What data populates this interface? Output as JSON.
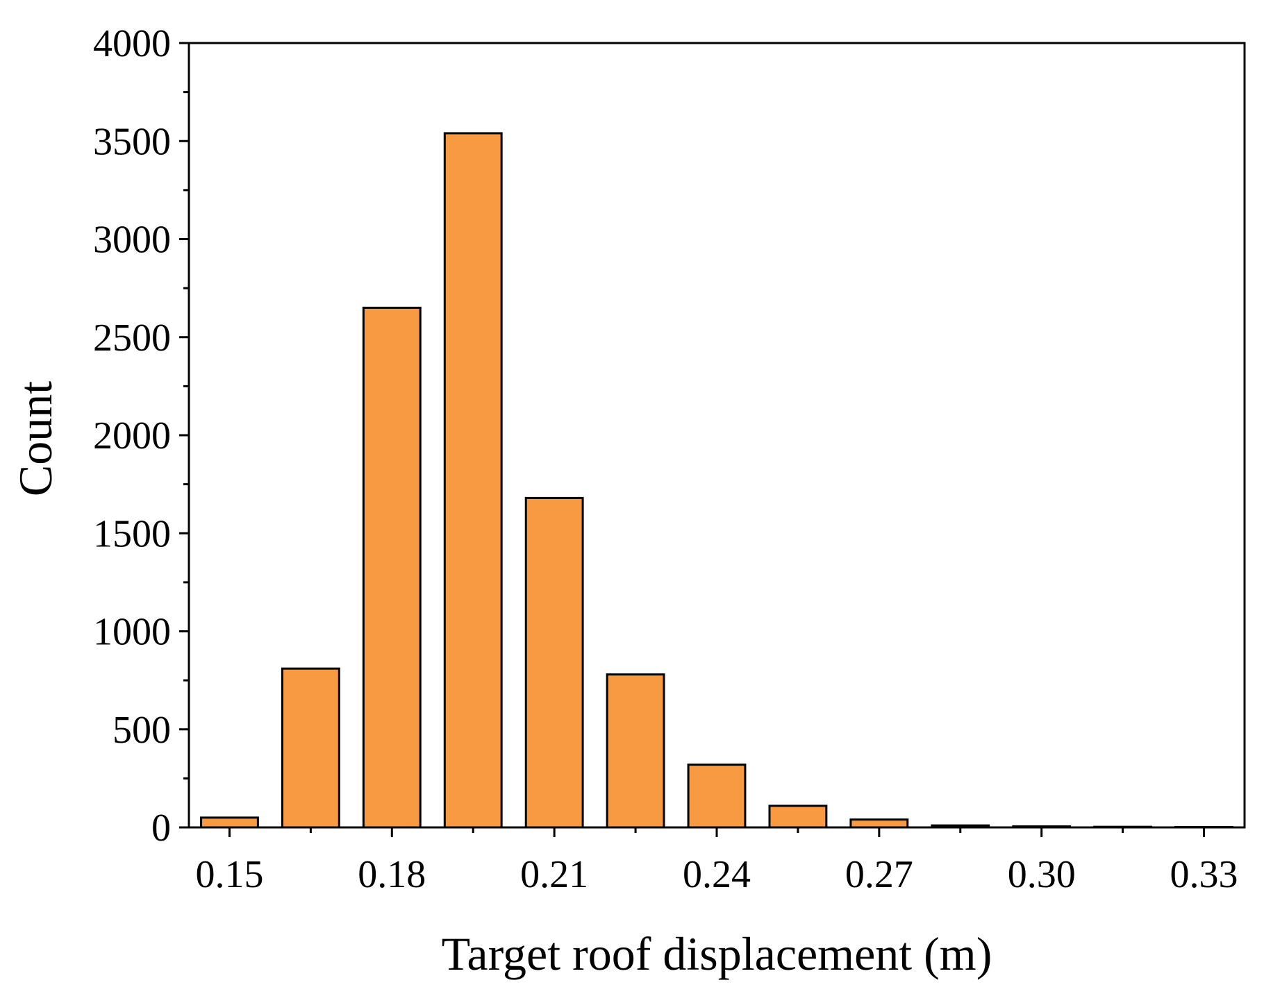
{
  "chart_data": {
    "type": "bar",
    "title": "",
    "xlabel": "Target roof displacement (m)",
    "ylabel": "Count",
    "bin_centers": [
      0.15,
      0.165,
      0.18,
      0.195,
      0.21,
      0.225,
      0.24,
      0.255,
      0.27,
      0.285,
      0.3,
      0.315,
      0.33
    ],
    "bin_width": 0.015,
    "values": [
      50,
      810,
      2650,
      3540,
      1680,
      780,
      320,
      110,
      40,
      10,
      5,
      3,
      2
    ],
    "xticks": [
      0.15,
      0.18,
      0.21,
      0.24,
      0.27,
      0.3,
      0.33
    ],
    "xtick_labels": [
      "0.15",
      "0.18",
      "0.21",
      "0.24",
      "0.27",
      "0.30",
      "0.33"
    ],
    "yticks": [
      0,
      500,
      1000,
      1500,
      2000,
      2500,
      3000,
      3500,
      4000
    ],
    "ytick_labels": [
      "0",
      "500",
      "1000",
      "1500",
      "2000",
      "2500",
      "3000",
      "3500",
      "4000"
    ],
    "xlim": [
      0.1425,
      0.3375
    ],
    "ylim": [
      0,
      4000
    ],
    "grid": false,
    "bar_color": "#F79A41",
    "edge_color": "#000000"
  }
}
